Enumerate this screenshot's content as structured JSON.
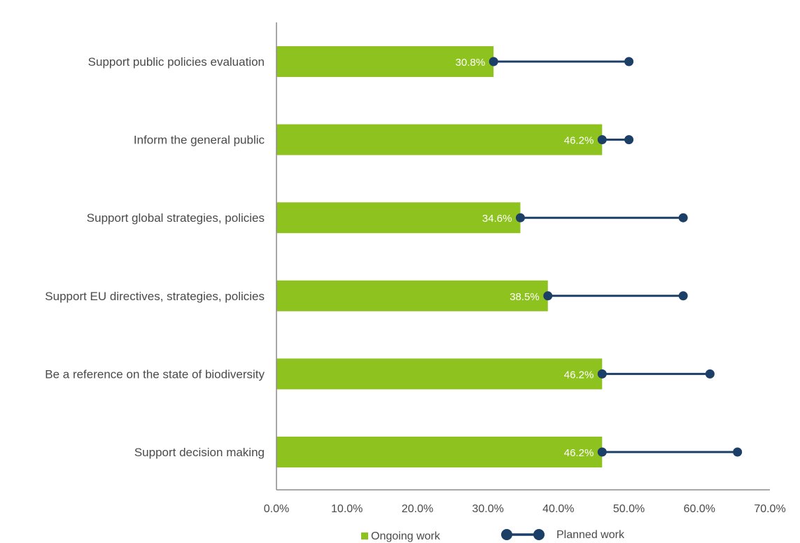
{
  "chart_data": {
    "type": "bar",
    "orientation": "horizontal",
    "categories": [
      "Support public policies evaluation",
      "Inform the general public",
      "Support global strategies, policies",
      "Support EU directives, strategies, policies",
      "Be a reference on the state of biodiversity",
      "Support decision making"
    ],
    "series": [
      {
        "name": "Ongoing work",
        "type": "bar",
        "color": "#8DC21F",
        "values": [
          30.8,
          46.2,
          34.6,
          38.5,
          46.2,
          46.2
        ],
        "data_labels": [
          "30.8%",
          "46.2%",
          "34.6%",
          "38.5%",
          "46.2%",
          "46.2%"
        ]
      },
      {
        "name": "Planned work",
        "type": "dumbbell-end",
        "color": "#1B3F66",
        "values": [
          50.0,
          50.0,
          57.7,
          57.7,
          61.5,
          65.4
        ]
      }
    ],
    "xlim": [
      0,
      70
    ],
    "xticks": [
      "0.0%",
      "10.0%",
      "20.0%",
      "30.0%",
      "40.0%",
      "50.0%",
      "60.0%",
      "70.0%"
    ],
    "grid": false,
    "legend_position": "bottom"
  }
}
